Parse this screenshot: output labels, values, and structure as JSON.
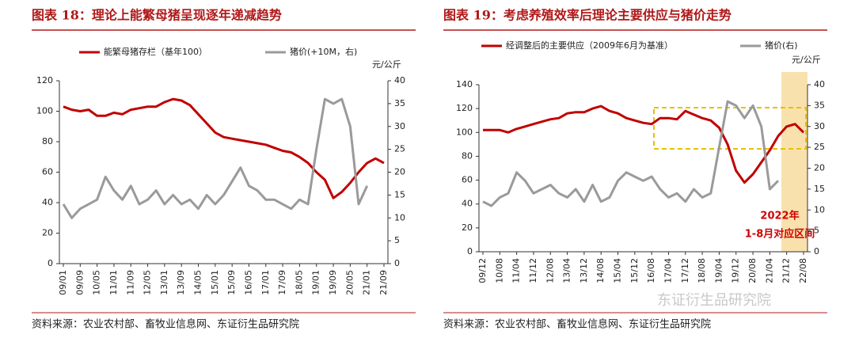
{
  "chart_data": [
    {
      "type": "line",
      "title": "图表 18：理论上能繁母猪呈现逐年递减趋势",
      "y2_label": "元/公斤",
      "source": "资料来源：农业农村部、畜牧业信息网、东证衍生品研究院",
      "categories": [
        "09/01",
        null,
        "09/09",
        null,
        "10/05",
        null,
        "11/01",
        null,
        "11/09",
        null,
        "12/05",
        null,
        "13/01",
        null,
        "13/09",
        null,
        "14/05",
        null,
        "15/01",
        null,
        "15/09",
        null,
        "16/05",
        null,
        "17/01",
        null,
        "17/09",
        null,
        "18/05",
        null,
        "19/01",
        null,
        "19/09",
        null,
        "20/05",
        null,
        "21/01",
        null,
        "21/09"
      ],
      "series": [
        {
          "name": "能繁母猪存栏（基年100）",
          "color": "#c00000",
          "axis": "y",
          "values": [
            103,
            101,
            100,
            101,
            97,
            97,
            99,
            98,
            101,
            102,
            103,
            103,
            106,
            108,
            107,
            104,
            98,
            92,
            86,
            83,
            82,
            81,
            80,
            79,
            78,
            76,
            74,
            73,
            70,
            66,
            60,
            55,
            43,
            47,
            53,
            60,
            66,
            69,
            66
          ]
        },
        {
          "name": "猪价(+10M，右)",
          "color": "#9a9a9a",
          "axis": "y2",
          "values": [
            13,
            10,
            12,
            13,
            14,
            19,
            16,
            14,
            17,
            13,
            14,
            16,
            13,
            15,
            13,
            14,
            12,
            15,
            13,
            15,
            18,
            21,
            17,
            16,
            14,
            14,
            13,
            12,
            14,
            13,
            25,
            36,
            35,
            36,
            30,
            13,
            17,
            null,
            null
          ]
        }
      ],
      "ylim": [
        0,
        120
      ],
      "yticks": [
        0,
        20,
        40,
        60,
        80,
        100,
        120
      ],
      "y2lim": [
        0,
        40
      ],
      "y2ticks": [
        0,
        5,
        10,
        15,
        20,
        25,
        30,
        35,
        40
      ]
    },
    {
      "type": "line",
      "title": "图表 19：考虑养殖效率后理论主要供应与猪价走势",
      "y2_label": "元/公斤",
      "source": "资料来源：农业农村部、畜牧业信息网、东证衍生品研究院",
      "annotations": [
        "2022年",
        "1-8月对应区间"
      ],
      "watermark": "东证衍生品研究院",
      "categories": [
        "09/12",
        null,
        "10/08",
        null,
        "11/04",
        null,
        "11/12",
        null,
        "12/08",
        null,
        "13/04",
        null,
        "13/12",
        null,
        "14/08",
        null,
        "15/04",
        null,
        "15/12",
        null,
        "16/08",
        null,
        "17/04",
        null,
        "17/12",
        null,
        "18/08",
        null,
        "19/04",
        null,
        "19/12",
        null,
        "20/08",
        null,
        "21/04",
        null,
        "21/12",
        null,
        "22/08"
      ],
      "series": [
        {
          "name": "经调整后的主要供应（2009年6月为基准）",
          "color": "#c00000",
          "axis": "y",
          "values": [
            102,
            102,
            102,
            100,
            103,
            105,
            107,
            109,
            111,
            112,
            116,
            117,
            117,
            120,
            122,
            118,
            116,
            112,
            110,
            108,
            107,
            112,
            112,
            111,
            118,
            115,
            112,
            110,
            104,
            90,
            68,
            58,
            65,
            75,
            85,
            97,
            105,
            107,
            100
          ]
        },
        {
          "name": "猪价(右)",
          "color": "#9a9a9a",
          "axis": "y2",
          "values": [
            12,
            11,
            13,
            14,
            19,
            17,
            14,
            15,
            16,
            14,
            13,
            15,
            12,
            16,
            12,
            13,
            17,
            19,
            18,
            17,
            18,
            15,
            13,
            14,
            12,
            15,
            13,
            14,
            25,
            36,
            35,
            32,
            35,
            30,
            15,
            17,
            null,
            null,
            null
          ]
        }
      ],
      "ylim": [
        0,
        140
      ],
      "yticks": [
        0,
        20,
        40,
        60,
        80,
        100,
        120,
        140
      ],
      "y2lim": [
        0,
        40
      ],
      "y2ticks": [
        0,
        5,
        10,
        15,
        20,
        25,
        30,
        35,
        40
      ]
    }
  ]
}
